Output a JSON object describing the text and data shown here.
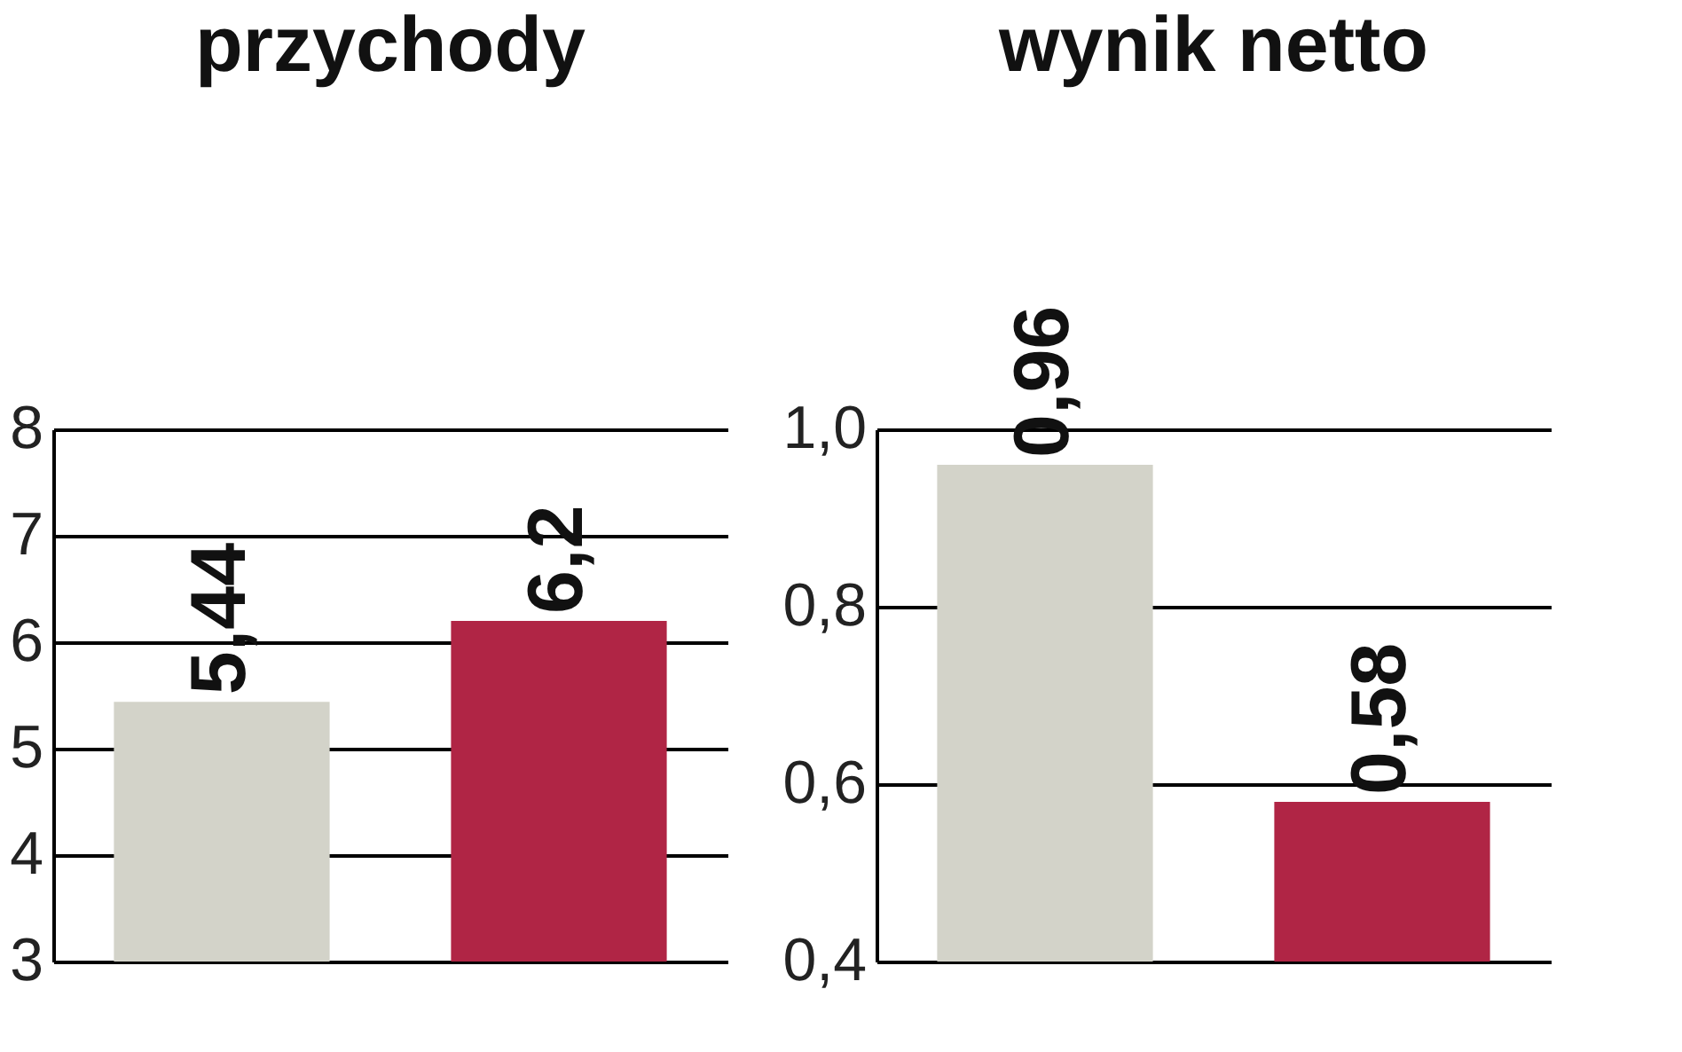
{
  "chart_data": [
    {
      "type": "bar",
      "title": "przychody",
      "categories": [
        null,
        null
      ],
      "values": [
        5.44,
        6.2
      ],
      "colors": [
        "#d3d3c9",
        "#b02545"
      ],
      "value_labels": [
        "5,44",
        "6,2"
      ],
      "ylim": [
        3,
        8
      ],
      "yticks": [
        3,
        4,
        5,
        6,
        7,
        8
      ],
      "grid": "y",
      "tick_labels": "y"
    },
    {
      "type": "bar",
      "title": "wynik netto",
      "categories": [
        null,
        null
      ],
      "values": [
        0.96,
        0.58
      ],
      "colors": [
        "#d3d3c9",
        "#b02545"
      ],
      "value_labels": [
        "0,96",
        "0,58"
      ],
      "ylim": [
        0.4,
        1.0
      ],
      "yticks": [
        {
          "value": 0.4,
          "label": "0,4"
        },
        {
          "value": 0.6,
          "label": "0,6"
        },
        {
          "value": 0.8,
          "label": "0,8"
        },
        {
          "value": 1.0,
          "label": "1,0"
        }
      ],
      "grid": "y",
      "tick_labels": "y"
    }
  ]
}
